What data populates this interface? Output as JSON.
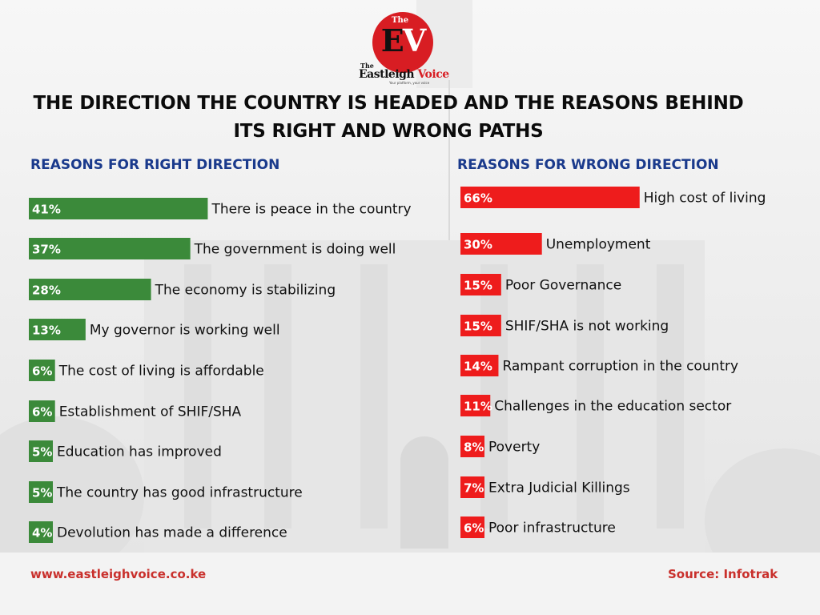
{
  "logo": {
    "badge_text": "The",
    "monogram": "EV",
    "wordmark_the": "The",
    "wordmark": "Eastleigh Voice",
    "tagline": "Your platform, your voice"
  },
  "title_line1": "THE DIRECTION THE COUNTRY IS HEADED AND THE REASONS BEHIND",
  "title_line2": "ITS RIGHT AND WRONG PATHS",
  "footer": {
    "website": "www.eastleighvoice.co.ke",
    "source": "Source: Infotrak"
  },
  "colors": {
    "right_bar": "#3b8a3a",
    "wrong_bar": "#ee1c1c",
    "heading": "#1a3a8c",
    "footer_text": "#c9302c",
    "logo_red": "#d81d23"
  },
  "chart_data": [
    {
      "type": "bar",
      "orientation": "horizontal",
      "title": "REASONS FOR RIGHT DIRECTION",
      "unit": "%",
      "categories": [
        "There is peace in the country",
        "The government is doing well",
        "The economy is stabilizing",
        "My governor is working well",
        "The cost of living is affordable",
        "Establishment of SHIF/SHA",
        "Education has improved",
        "The country has good infrastructure",
        "Devolution has made a difference"
      ],
      "values": [
        41,
        37,
        28,
        13,
        6,
        6,
        5,
        5,
        4
      ],
      "labels": [
        "41%",
        "37%",
        "28%",
        "13%",
        "6%",
        "6%",
        "5%",
        "5%",
        "4%"
      ],
      "color": "#3b8a3a",
      "grid": false
    },
    {
      "type": "bar",
      "orientation": "horizontal",
      "title": "REASONS FOR WRONG DIRECTION",
      "unit": "%",
      "categories": [
        "High cost of living",
        "Unemployment",
        "Poor Governance",
        "SHIF/SHA is not working",
        "Rampant corruption in the country",
        "Challenges in the education sector",
        "Poverty",
        "Extra Judicial Killings",
        "Poor infrastructure"
      ],
      "values": [
        66,
        30,
        15,
        15,
        14,
        11,
        8,
        7,
        6
      ],
      "labels": [
        "66%",
        "30%",
        "15%",
        "15%",
        "14%",
        "11%",
        "8%",
        "7%",
        "6%"
      ],
      "color": "#ee1c1c",
      "grid": false
    }
  ]
}
